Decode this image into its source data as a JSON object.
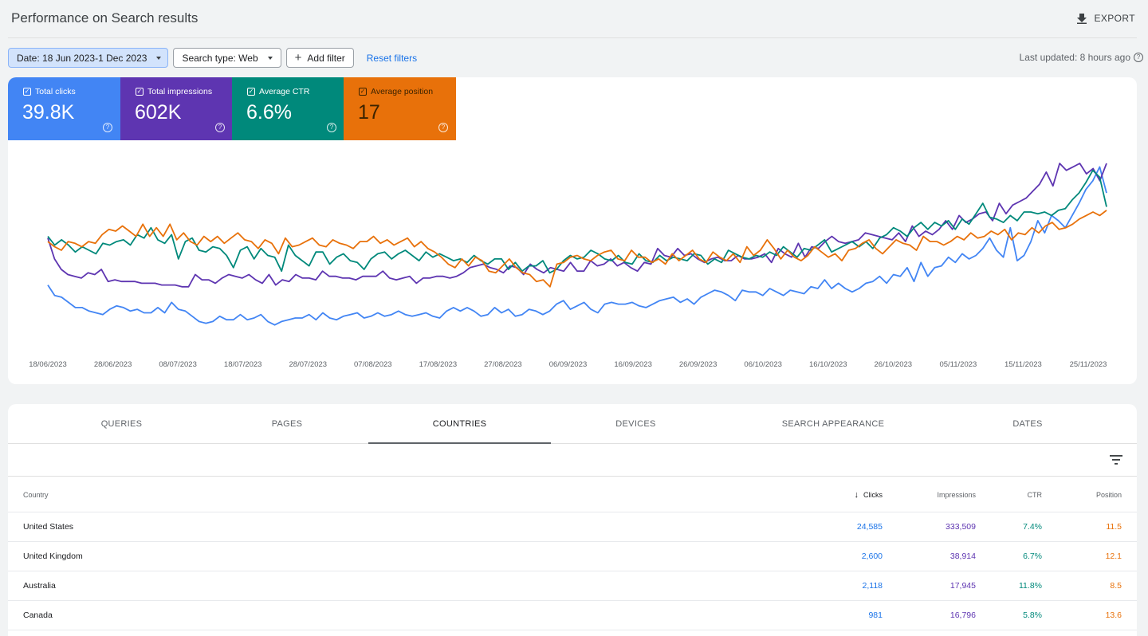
{
  "header": {
    "title": "Performance on Search results",
    "export_label": "EXPORT"
  },
  "filters": {
    "date": "Date: 18 Jun 2023-1 Dec 2023",
    "search_type": "Search type: Web",
    "add_filter": "Add filter",
    "reset": "Reset filters",
    "last_updated": "Last updated: 8 hours ago"
  },
  "metrics": [
    {
      "label": "Total clicks",
      "value": "39.8K",
      "color": "#4285f4"
    },
    {
      "label": "Total impressions",
      "value": "602K",
      "color": "#5e35b1"
    },
    {
      "label": "Average CTR",
      "value": "6.6%",
      "color": "#00897b"
    },
    {
      "label": "Average position",
      "value": "17",
      "color": "#e8710a"
    }
  ],
  "chart_data": {
    "type": "line",
    "x_tick_labels": [
      "18/06/2023",
      "28/06/2023",
      "08/07/2023",
      "18/07/2023",
      "28/07/2023",
      "07/08/2023",
      "17/08/2023",
      "27/08/2023",
      "06/09/2023",
      "16/09/2023",
      "26/09/2023",
      "06/10/2023",
      "16/10/2023",
      "26/10/2023",
      "05/11/2023",
      "15/11/2023",
      "25/11/2023"
    ],
    "series": [
      {
        "color": "#4285f4",
        "values": [
          0.3,
          0.24,
          0.23,
          0.2,
          0.17,
          0.17,
          0.15,
          0.14,
          0.13,
          0.16,
          0.18,
          0.17,
          0.15,
          0.16,
          0.14,
          0.14,
          0.17,
          0.14,
          0.2,
          0.16,
          0.15,
          0.12,
          0.09,
          0.08,
          0.09,
          0.12,
          0.1,
          0.1,
          0.13,
          0.1,
          0.11,
          0.13,
          0.09,
          0.07,
          0.09,
          0.1,
          0.11,
          0.11,
          0.13,
          0.1,
          0.14,
          0.11,
          0.1,
          0.12,
          0.13,
          0.14,
          0.11,
          0.12,
          0.14,
          0.12,
          0.13,
          0.15,
          0.13,
          0.12,
          0.13,
          0.14,
          0.12,
          0.11,
          0.15,
          0.17,
          0.15,
          0.17,
          0.15,
          0.12,
          0.13,
          0.17,
          0.14,
          0.16,
          0.12,
          0.13,
          0.16,
          0.15,
          0.13,
          0.15,
          0.19,
          0.21,
          0.16,
          0.18,
          0.2,
          0.16,
          0.14,
          0.19,
          0.2,
          0.19,
          0.19,
          0.2,
          0.18,
          0.17,
          0.19,
          0.21,
          0.22,
          0.23,
          0.2,
          0.22,
          0.19,
          0.23,
          0.25,
          0.27,
          0.26,
          0.24,
          0.21,
          0.27,
          0.26,
          0.26,
          0.24,
          0.28,
          0.26,
          0.24,
          0.27,
          0.26,
          0.25,
          0.29,
          0.28,
          0.33,
          0.28,
          0.31,
          0.28,
          0.26,
          0.28,
          0.31,
          0.32,
          0.35,
          0.31,
          0.36,
          0.35,
          0.4,
          0.32,
          0.43,
          0.35,
          0.4,
          0.41,
          0.46,
          0.43,
          0.48,
          0.45,
          0.47,
          0.51,
          0.57,
          0.5,
          0.46,
          0.63,
          0.44,
          0.47,
          0.55,
          0.67,
          0.6,
          0.7,
          0.67,
          0.63,
          0.7,
          0.77,
          0.85,
          0.9,
          0.98,
          0.83
        ]
      },
      {
        "color": "#5e35b1",
        "values": [
          0.57,
          0.45,
          0.39,
          0.36,
          0.35,
          0.34,
          0.37,
          0.36,
          0.39,
          0.32,
          0.33,
          0.32,
          0.32,
          0.32,
          0.31,
          0.31,
          0.31,
          0.3,
          0.3,
          0.3,
          0.29,
          0.29,
          0.36,
          0.33,
          0.33,
          0.31,
          0.34,
          0.36,
          0.35,
          0.34,
          0.36,
          0.33,
          0.31,
          0.36,
          0.3,
          0.33,
          0.32,
          0.36,
          0.34,
          0.34,
          0.33,
          0.38,
          0.35,
          0.35,
          0.34,
          0.34,
          0.33,
          0.35,
          0.35,
          0.35,
          0.38,
          0.34,
          0.33,
          0.34,
          0.35,
          0.31,
          0.34,
          0.34,
          0.35,
          0.35,
          0.34,
          0.35,
          0.37,
          0.4,
          0.41,
          0.42,
          0.4,
          0.39,
          0.37,
          0.41,
          0.4,
          0.36,
          0.42,
          0.39,
          0.37,
          0.4,
          0.39,
          0.38,
          0.43,
          0.38,
          0.38,
          0.44,
          0.41,
          0.42,
          0.45,
          0.41,
          0.43,
          0.4,
          0.38,
          0.43,
          0.42,
          0.51,
          0.47,
          0.46,
          0.51,
          0.47,
          0.48,
          0.45,
          0.43,
          0.45,
          0.46,
          0.44,
          0.44,
          0.47,
          0.45,
          0.45,
          0.46,
          0.48,
          0.43,
          0.51,
          0.48,
          0.46,
          0.54,
          0.46,
          0.52,
          0.51,
          0.55,
          0.58,
          0.55,
          0.54,
          0.55,
          0.56,
          0.6,
          0.59,
          0.58,
          0.57,
          0.56,
          0.6,
          0.55,
          0.64,
          0.58,
          0.61,
          0.59,
          0.62,
          0.67,
          0.62,
          0.7,
          0.66,
          0.68,
          0.71,
          0.72,
          0.67,
          0.77,
          0.71,
          0.76,
          0.78,
          0.8,
          0.84,
          0.88,
          0.95,
          0.87,
          1.0,
          0.96,
          0.98,
          1.0,
          0.94,
          0.97,
          0.9,
          1.0
        ]
      },
      {
        "color": "#00897b",
        "values": [
          0.58,
          0.53,
          0.56,
          0.53,
          0.49,
          0.52,
          0.5,
          0.48,
          0.54,
          0.53,
          0.55,
          0.56,
          0.53,
          0.59,
          0.57,
          0.63,
          0.56,
          0.54,
          0.59,
          0.45,
          0.55,
          0.57,
          0.5,
          0.49,
          0.52,
          0.51,
          0.47,
          0.4,
          0.5,
          0.52,
          0.45,
          0.51,
          0.47,
          0.46,
          0.38,
          0.53,
          0.47,
          0.44,
          0.41,
          0.49,
          0.49,
          0.42,
          0.46,
          0.48,
          0.44,
          0.43,
          0.39,
          0.45,
          0.48,
          0.49,
          0.45,
          0.48,
          0.5,
          0.47,
          0.44,
          0.49,
          0.46,
          0.48,
          0.46,
          0.44,
          0.45,
          0.43,
          0.47,
          0.44,
          0.42,
          0.45,
          0.45,
          0.39,
          0.43,
          0.38,
          0.41,
          0.41,
          0.44,
          0.37,
          0.39,
          0.44,
          0.47,
          0.45,
          0.46,
          0.5,
          0.48,
          0.45,
          0.44,
          0.47,
          0.43,
          0.42,
          0.48,
          0.44,
          0.43,
          0.47,
          0.44,
          0.46,
          0.45,
          0.44,
          0.48,
          0.47,
          0.42,
          0.45,
          0.43,
          0.5,
          0.48,
          0.46,
          0.45,
          0.47,
          0.46,
          0.49,
          0.47,
          0.52,
          0.49,
          0.46,
          0.51,
          0.5,
          0.53,
          0.56,
          0.49,
          0.51,
          0.53,
          0.55,
          0.52,
          0.55,
          0.51,
          0.57,
          0.59,
          0.63,
          0.61,
          0.58,
          0.63,
          0.66,
          0.62,
          0.66,
          0.64,
          0.67,
          0.62,
          0.68,
          0.65,
          0.71,
          0.77,
          0.69,
          0.68,
          0.66,
          0.7,
          0.67,
          0.72,
          0.72,
          0.71,
          0.72,
          0.7,
          0.73,
          0.74,
          0.79,
          0.83,
          0.89,
          0.96,
          0.92,
          0.75
        ]
      },
      {
        "color": "#e8710a",
        "values": [
          0.55,
          0.52,
          0.5,
          0.55,
          0.54,
          0.52,
          0.55,
          0.54,
          0.59,
          0.62,
          0.61,
          0.64,
          0.61,
          0.58,
          0.65,
          0.58,
          0.63,
          0.58,
          0.65,
          0.56,
          0.6,
          0.55,
          0.53,
          0.58,
          0.55,
          0.58,
          0.54,
          0.57,
          0.6,
          0.56,
          0.55,
          0.51,
          0.56,
          0.54,
          0.48,
          0.57,
          0.52,
          0.53,
          0.55,
          0.57,
          0.53,
          0.52,
          0.56,
          0.54,
          0.53,
          0.51,
          0.55,
          0.55,
          0.58,
          0.54,
          0.56,
          0.53,
          0.55,
          0.57,
          0.52,
          0.55,
          0.51,
          0.49,
          0.46,
          0.42,
          0.4,
          0.45,
          0.41,
          0.46,
          0.44,
          0.38,
          0.37,
          0.41,
          0.45,
          0.4,
          0.37,
          0.36,
          0.32,
          0.33,
          0.29,
          0.42,
          0.43,
          0.46,
          0.47,
          0.45,
          0.44,
          0.47,
          0.49,
          0.5,
          0.45,
          0.44,
          0.5,
          0.46,
          0.46,
          0.43,
          0.45,
          0.42,
          0.48,
          0.44,
          0.47,
          0.5,
          0.45,
          0.43,
          0.49,
          0.46,
          0.44,
          0.48,
          0.43,
          0.52,
          0.47,
          0.5,
          0.56,
          0.51,
          0.45,
          0.5,
          0.46,
          0.44,
          0.47,
          0.52,
          0.49,
          0.46,
          0.48,
          0.44,
          0.5,
          0.51,
          0.54,
          0.56,
          0.51,
          0.48,
          0.52,
          0.56,
          0.54,
          0.53,
          0.5,
          0.58,
          0.55,
          0.55,
          0.53,
          0.55,
          0.58,
          0.56,
          0.6,
          0.57,
          0.58,
          0.61,
          0.59,
          0.62,
          0.56,
          0.6,
          0.59,
          0.63,
          0.6,
          0.64,
          0.66,
          0.62,
          0.63,
          0.65,
          0.68,
          0.7,
          0.72,
          0.7,
          0.73
        ]
      }
    ]
  },
  "tabs": [
    "QUERIES",
    "PAGES",
    "COUNTRIES",
    "DEVICES",
    "SEARCH APPEARANCE",
    "DATES"
  ],
  "table": {
    "headers": {
      "country": "Country",
      "clicks": "Clicks",
      "impressions": "Impressions",
      "ctr": "CTR",
      "position": "Position"
    },
    "rows": [
      {
        "country": "United States",
        "clicks": "24,585",
        "impressions": "333,509",
        "ctr": "7.4%",
        "position": "11.5"
      },
      {
        "country": "United Kingdom",
        "clicks": "2,600",
        "impressions": "38,914",
        "ctr": "6.7%",
        "position": "12.1"
      },
      {
        "country": "Australia",
        "clicks": "2,118",
        "impressions": "17,945",
        "ctr": "11.8%",
        "position": "8.5"
      },
      {
        "country": "Canada",
        "clicks": "981",
        "impressions": "16,796",
        "ctr": "5.8%",
        "position": "13.6"
      }
    ]
  }
}
